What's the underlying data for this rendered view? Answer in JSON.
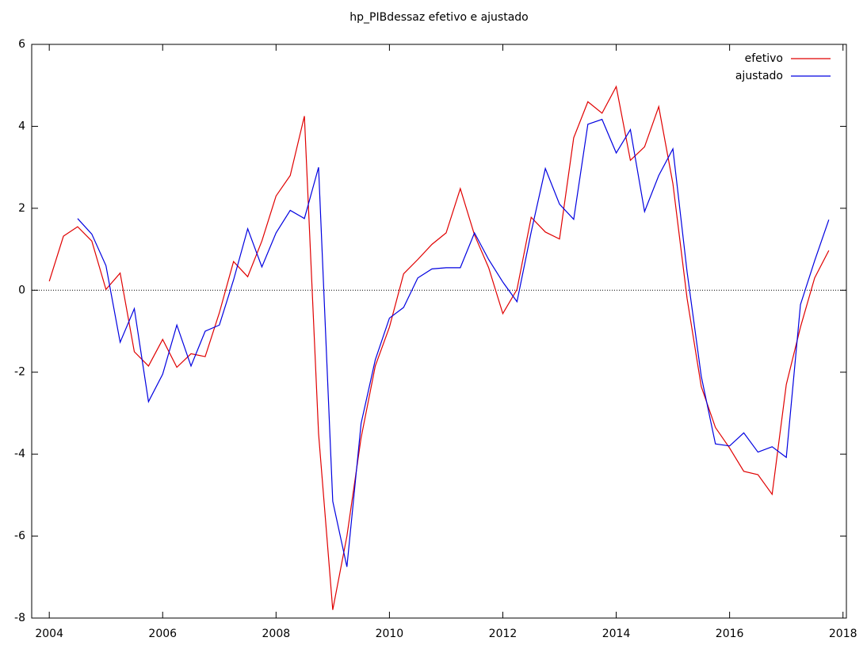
{
  "chart_data": {
    "type": "line",
    "title": "hp_PIBdessaz efetivo e ajustado",
    "x": [
      2004,
      2004.25,
      2004.5,
      2004.75,
      2005,
      2005.25,
      2005.5,
      2005.75,
      2006,
      2006.25,
      2006.5,
      2006.75,
      2007,
      2007.25,
      2007.5,
      2007.75,
      2008,
      2008.25,
      2008.5,
      2008.75,
      2009,
      2009.25,
      2009.5,
      2009.75,
      2010,
      2010.25,
      2010.5,
      2010.75,
      2011,
      2011.25,
      2011.5,
      2011.75,
      2012,
      2012.25,
      2012.5,
      2012.75,
      2013,
      2013.25,
      2013.5,
      2013.75,
      2014,
      2014.25,
      2014.5,
      2014.75,
      2015,
      2015.25,
      2015.5,
      2015.75,
      2016,
      2016.25,
      2016.5,
      2016.75,
      2017,
      2017.25,
      2017.5,
      2017.75
    ],
    "series": [
      {
        "name": "efetivo",
        "color": "#e00000",
        "values": [
          0.22,
          1.32,
          1.55,
          1.2,
          0.02,
          0.42,
          -1.5,
          -1.85,
          -1.2,
          -1.88,
          -1.55,
          -1.62,
          -0.55,
          0.7,
          0.33,
          1.2,
          2.3,
          2.8,
          4.25,
          -3.5,
          -7.8,
          -6.0,
          -3.6,
          -1.85,
          -0.9,
          0.4,
          0.75,
          1.12,
          1.4,
          2.48,
          1.35,
          0.55,
          -0.57,
          0.02,
          1.78,
          1.42,
          1.25,
          3.72,
          4.6,
          4.32,
          4.97,
          3.17,
          3.5,
          4.48,
          2.6,
          -0.2,
          -2.35,
          -3.35,
          -3.85,
          -4.42,
          -4.5,
          -4.98,
          -2.3,
          -0.9,
          0.3,
          0.97
        ]
      },
      {
        "name": "ajustado",
        "color": "#0000e0",
        "values": [
          null,
          null,
          1.75,
          1.37,
          0.6,
          -1.27,
          -0.45,
          -2.72,
          -2.05,
          -0.85,
          -1.85,
          -1.0,
          -0.85,
          0.25,
          1.5,
          0.57,
          1.4,
          1.95,
          1.75,
          3.0,
          -5.15,
          -6.75,
          -3.25,
          -1.7,
          -0.68,
          -0.42,
          0.3,
          0.52,
          0.55,
          0.55,
          1.4,
          0.75,
          0.2,
          -0.28,
          1.42,
          2.97,
          2.1,
          1.73,
          4.05,
          4.17,
          3.35,
          3.92,
          1.92,
          2.8,
          3.45,
          0.45,
          -2.1,
          -3.75,
          -3.8,
          -3.48,
          -3.95,
          -3.82,
          -4.08,
          -0.35,
          0.72,
          1.72
        ]
      }
    ],
    "xlim": [
      2003.69,
      2018.06
    ],
    "xticks": [
      2004,
      2006,
      2008,
      2010,
      2012,
      2014,
      2016,
      2018
    ],
    "ylim": [
      -8,
      6
    ],
    "yticks": [
      -8,
      -6,
      -4,
      -2,
      0,
      2,
      4,
      6
    ],
    "zero_line": true,
    "legend": "top-right"
  }
}
